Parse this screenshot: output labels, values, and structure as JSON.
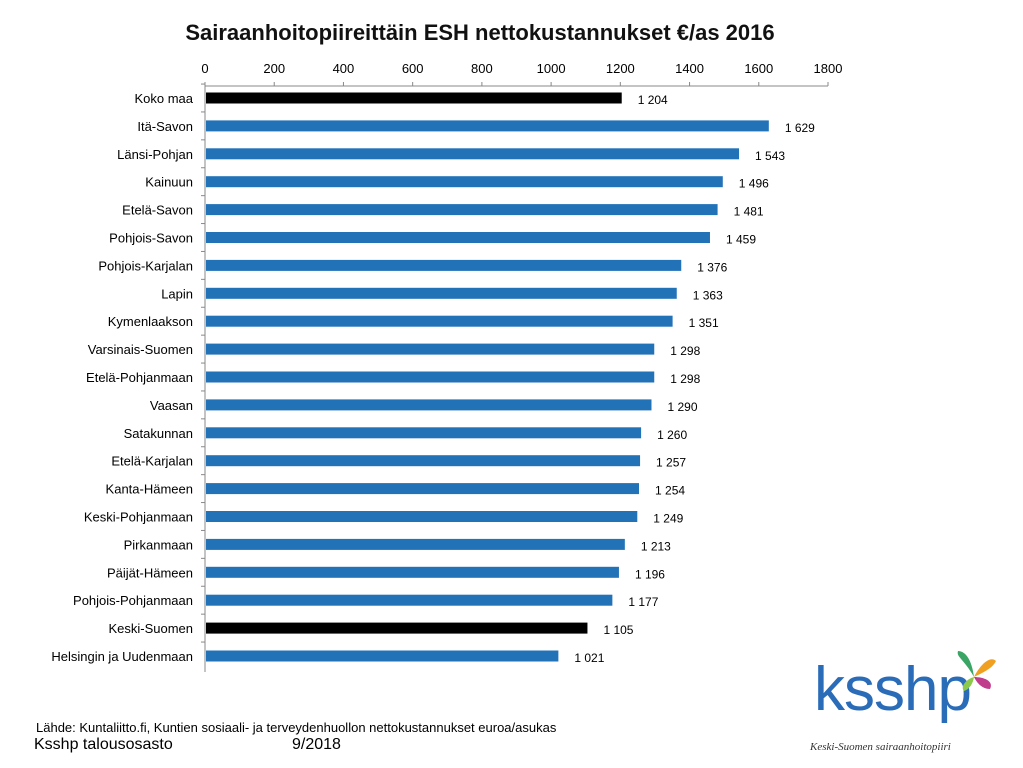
{
  "chart_data": {
    "type": "bar",
    "orientation": "horizontal",
    "title": "Sairaanhoitopiireittäin ESH nettokustannukset €/as 2016",
    "xlabel": "",
    "ylabel": "",
    "xlim": [
      0,
      1800
    ],
    "xticks": [
      0,
      200,
      400,
      600,
      800,
      1000,
      1200,
      1400,
      1600,
      1800
    ],
    "axis_position": "top",
    "grid": false,
    "categories": [
      "Koko maa",
      "Itä-Savon",
      "Länsi-Pohjan",
      "Kainuun",
      "Etelä-Savon",
      "Pohjois-Savon",
      "Pohjois-Karjalan",
      "Lapin",
      "Kymenlaakson",
      "Varsinais-Suomen",
      "Etelä-Pohjanmaan",
      "Vaasan",
      "Satakunnan",
      "Etelä-Karjalan",
      "Kanta-Hämeen",
      "Keski-Pohjanmaan",
      "Pirkanmaan",
      "Päijät-Hämeen",
      "Pohjois-Pohjanmaan",
      "Keski-Suomen",
      "Helsingin ja Uudenmaan"
    ],
    "values": [
      1204,
      1629,
      1543,
      1496,
      1481,
      1459,
      1376,
      1363,
      1351,
      1298,
      1298,
      1290,
      1260,
      1257,
      1254,
      1249,
      1213,
      1196,
      1177,
      1105,
      1021
    ],
    "value_labels": [
      "1 204",
      "1 629",
      "1 543",
      "1 496",
      "1 481",
      "1 459",
      "1 376",
      "1 363",
      "1 351",
      "1 298",
      "1 298",
      "1 290",
      "1 260",
      "1 257",
      "1 254",
      "1 249",
      "1 213",
      "1 196",
      "1 177",
      "1 105",
      "1 021"
    ],
    "highlighted": [
      "Koko maa",
      "Keski-Suomen"
    ],
    "colors": {
      "default": "#2272b8",
      "highlight": "#000000"
    }
  },
  "footer": {
    "source": "Lähde: Kuntaliitto.fi, Kuntien sosiaali- ja terveydenhuollon nettokustannukset euroa/asukas",
    "department": "Ksshp talousosasto",
    "date": "9/2018"
  },
  "logo": {
    "text": "ksshp",
    "subtitle": "Keski-Suomen sairaanhoitopiiri",
    "icon": "butterfly-icon"
  }
}
